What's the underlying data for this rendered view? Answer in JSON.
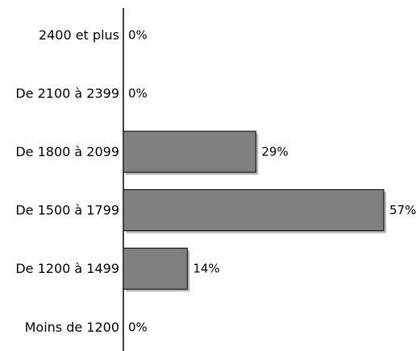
{
  "chart_data": {
    "type": "bar",
    "orientation": "horizontal",
    "categories": [
      "2400 et plus",
      "De 2100 à 2399",
      "De 1800 à 2099",
      "De 1500 à 1799",
      "De 1200 à 1499",
      "Moins de 1200"
    ],
    "values": [
      0,
      0,
      29,
      57,
      14,
      0
    ],
    "value_labels": [
      "0%",
      "0%",
      "29%",
      "57%",
      "14%",
      "0%"
    ],
    "unit": "%",
    "xlim": [
      0,
      57
    ],
    "grid": false,
    "legend": "none",
    "title": "",
    "xlabel": "",
    "ylabel": "",
    "colors": {
      "bar_fill": "#808080",
      "bar_shadow": "#b8b8b8",
      "bar_outline": "#000000",
      "axis": "#000000"
    }
  }
}
